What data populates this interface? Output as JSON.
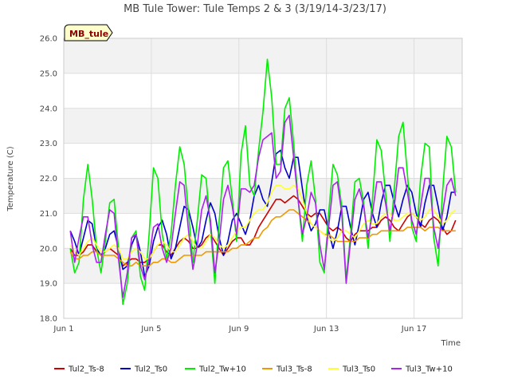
{
  "chart_data": {
    "type": "line",
    "title": "MB Tule Tower: Tule Temps 2 & 3 (3/19/14-3/23/17)",
    "site_tag": "MB_tule",
    "xlabel": "Time",
    "ylabel": "Temperature (C)",
    "xlim": [
      1,
      19.2
    ],
    "ylim": [
      18.0,
      26.0
    ],
    "x_ticks": [
      {
        "value": 1,
        "label": "Jun 1"
      },
      {
        "value": 5,
        "label": "Jun 5"
      },
      {
        "value": 9,
        "label": "Jun 9"
      },
      {
        "value": 13,
        "label": "Jun 13"
      },
      {
        "value": 17,
        "label": "Jun 17"
      }
    ],
    "y_ticks": [
      {
        "value": 18,
        "label": "18.0"
      },
      {
        "value": 19,
        "label": "19.0"
      },
      {
        "value": 20,
        "label": "20.0"
      },
      {
        "value": 21,
        "label": "21.0"
      },
      {
        "value": 22,
        "label": "22.0"
      },
      {
        "value": 23,
        "label": "23.0"
      },
      {
        "value": 24,
        "label": "24.0"
      },
      {
        "value": 25,
        "label": "25.0"
      },
      {
        "value": 26,
        "label": "26.0"
      }
    ],
    "grid": true,
    "legend_position": "bottom",
    "x": [
      1.3,
      1.5,
      1.7,
      1.9,
      2.1,
      2.3,
      2.5,
      2.7,
      2.9,
      3.1,
      3.3,
      3.5,
      3.7,
      3.9,
      4.1,
      4.3,
      4.5,
      4.7,
      4.9,
      5.1,
      5.3,
      5.5,
      5.7,
      5.9,
      6.1,
      6.3,
      6.5,
      6.7,
      6.9,
      7.1,
      7.3,
      7.5,
      7.7,
      7.9,
      8.1,
      8.3,
      8.5,
      8.7,
      8.9,
      9.1,
      9.3,
      9.5,
      9.7,
      9.9,
      10.1,
      10.3,
      10.5,
      10.7,
      10.9,
      11.1,
      11.3,
      11.5,
      11.7,
      11.9,
      12.1,
      12.3,
      12.5,
      12.7,
      12.9,
      13.1,
      13.3,
      13.5,
      13.7,
      13.9,
      14.1,
      14.3,
      14.5,
      14.7,
      14.9,
      15.1,
      15.3,
      15.5,
      15.7,
      15.9,
      16.1,
      16.3,
      16.5,
      16.7,
      16.9,
      17.1,
      17.3,
      17.5,
      17.7,
      17.9,
      18.1,
      18.3,
      18.5,
      18.7,
      18.9
    ],
    "series": [
      {
        "name": "Tul2_Ts-8",
        "color": "#cc0000",
        "values": [
          20.0,
          19.8,
          19.8,
          19.9,
          20.1,
          20.1,
          19.9,
          19.8,
          19.9,
          20.0,
          19.9,
          19.8,
          19.5,
          19.6,
          19.7,
          19.7,
          19.6,
          19.6,
          19.7,
          19.9,
          20.1,
          20.1,
          19.9,
          19.8,
          20.0,
          20.2,
          20.3,
          20.2,
          20.0,
          20.0,
          20.1,
          20.3,
          20.4,
          20.2,
          20.0,
          19.8,
          20.0,
          20.2,
          20.3,
          20.3,
          20.1,
          20.1,
          20.3,
          20.6,
          20.8,
          21.0,
          21.2,
          21.4,
          21.4,
          21.3,
          21.4,
          21.5,
          21.4,
          21.2,
          21.0,
          20.9,
          21.0,
          21.0,
          20.8,
          20.6,
          20.5,
          20.6,
          20.5,
          20.3,
          20.2,
          20.4,
          20.5,
          20.5,
          20.5,
          20.6,
          20.6,
          20.8,
          20.9,
          20.8,
          20.6,
          20.5,
          20.7,
          20.9,
          21.0,
          20.9,
          20.7,
          20.6,
          20.8,
          20.9,
          20.8,
          20.6,
          20.4,
          20.5,
          20.8
        ]
      },
      {
        "name": "Tul2_Ts0",
        "color": "#0000cc",
        "values": [
          20.5,
          20.2,
          19.8,
          20.3,
          20.8,
          20.7,
          20.0,
          19.8,
          20.0,
          20.4,
          20.5,
          20.0,
          19.4,
          19.5,
          20.1,
          20.4,
          19.9,
          19.2,
          19.5,
          20.2,
          20.6,
          20.8,
          20.4,
          19.7,
          20.0,
          20.6,
          21.2,
          21.1,
          20.6,
          20.0,
          20.2,
          20.8,
          21.3,
          21.0,
          20.3,
          19.8,
          20.2,
          20.8,
          21.0,
          20.7,
          20.4,
          20.8,
          21.5,
          21.8,
          21.4,
          21.2,
          21.9,
          22.7,
          22.8,
          22.3,
          22.0,
          22.6,
          22.6,
          21.7,
          20.9,
          20.5,
          20.7,
          21.1,
          21.1,
          20.5,
          20.0,
          20.5,
          21.2,
          21.2,
          20.6,
          20.1,
          20.7,
          21.4,
          21.6,
          21.0,
          20.6,
          21.3,
          21.8,
          21.8,
          21.3,
          20.9,
          21.4,
          21.8,
          21.6,
          21.0,
          20.6,
          21.3,
          21.8,
          21.8,
          21.2,
          20.5,
          20.9,
          21.6,
          21.6
        ]
      },
      {
        "name": "Tul2_Tw+10",
        "color": "#00ee00",
        "values": [
          20.0,
          19.3,
          19.6,
          21.4,
          22.4,
          21.4,
          20.0,
          19.3,
          20.2,
          21.3,
          21.4,
          20.0,
          18.4,
          19.0,
          20.3,
          20.5,
          19.2,
          18.8,
          20.4,
          22.3,
          22.0,
          20.4,
          19.7,
          20.4,
          21.8,
          22.9,
          22.4,
          21.0,
          19.6,
          20.8,
          22.1,
          22.0,
          20.6,
          19.0,
          20.8,
          22.3,
          22.5,
          21.4,
          20.2,
          22.7,
          23.5,
          21.8,
          21.5,
          22.8,
          23.9,
          25.4,
          24.3,
          22.4,
          22.4,
          24.0,
          24.3,
          23.0,
          21.4,
          20.2,
          21.8,
          22.5,
          21.4,
          19.6,
          19.3,
          21.0,
          22.4,
          22.1,
          21.2,
          19.1,
          20.4,
          21.9,
          22.0,
          21.3,
          20.0,
          21.4,
          23.1,
          22.8,
          21.6,
          20.2,
          21.7,
          23.2,
          23.6,
          22.1,
          20.6,
          20.2,
          22.0,
          23.0,
          22.9,
          20.3,
          19.5,
          21.6,
          23.2,
          22.9,
          21.6
        ]
      },
      {
        "name": "Tul3_Ts-8",
        "color": "#ee9900",
        "values": [
          19.9,
          19.7,
          19.7,
          19.8,
          19.8,
          19.9,
          19.9,
          19.8,
          19.8,
          19.8,
          19.8,
          19.7,
          19.6,
          19.5,
          19.5,
          19.6,
          19.5,
          19.5,
          19.5,
          19.6,
          19.6,
          19.7,
          19.7,
          19.6,
          19.6,
          19.7,
          19.8,
          19.8,
          19.8,
          19.8,
          19.8,
          19.9,
          19.9,
          19.9,
          19.9,
          19.9,
          19.9,
          20.0,
          20.0,
          20.1,
          20.1,
          20.2,
          20.3,
          20.3,
          20.5,
          20.6,
          20.8,
          20.9,
          20.9,
          21.0,
          21.1,
          21.1,
          21.0,
          20.9,
          20.8,
          20.7,
          20.6,
          20.5,
          20.4,
          20.4,
          20.3,
          20.2,
          20.2,
          20.2,
          20.2,
          20.2,
          20.3,
          20.3,
          20.3,
          20.4,
          20.4,
          20.5,
          20.5,
          20.5,
          20.5,
          20.5,
          20.5,
          20.6,
          20.6,
          20.6,
          20.6,
          20.5,
          20.6,
          20.6,
          20.6,
          20.5,
          20.5,
          20.5,
          20.5
        ]
      },
      {
        "name": "Tul3_Ts0",
        "color": "#ffff33",
        "values": [
          20.1,
          19.9,
          19.8,
          20.0,
          20.2,
          20.3,
          20.1,
          19.9,
          19.9,
          20.0,
          20.1,
          20.0,
          19.7,
          19.7,
          19.9,
          20.0,
          19.9,
          19.7,
          19.7,
          19.9,
          20.1,
          20.2,
          20.1,
          19.9,
          19.9,
          20.1,
          20.3,
          20.4,
          20.2,
          20.0,
          20.0,
          20.2,
          20.4,
          20.3,
          20.1,
          20.0,
          20.1,
          20.3,
          20.5,
          20.6,
          20.6,
          20.8,
          21.0,
          21.1,
          21.1,
          21.3,
          21.6,
          21.8,
          21.8,
          21.7,
          21.7,
          21.8,
          21.7,
          21.4,
          21.0,
          20.7,
          20.6,
          20.5,
          20.4,
          20.3,
          20.2,
          20.3,
          20.5,
          20.5,
          20.4,
          20.3,
          20.5,
          20.7,
          20.8,
          20.7,
          20.7,
          20.9,
          21.0,
          21.0,
          20.8,
          20.8,
          20.9,
          21.0,
          21.0,
          20.9,
          20.8,
          20.9,
          21.1,
          21.1,
          20.9,
          20.7,
          20.8,
          21.0,
          21.1
        ]
      },
      {
        "name": "Tul3_Tw+10",
        "color": "#aa22ee",
        "values": [
          20.5,
          19.6,
          20.3,
          20.9,
          20.9,
          20.1,
          19.6,
          19.6,
          20.4,
          21.1,
          21.0,
          19.7,
          18.6,
          19.3,
          20.3,
          20.4,
          19.5,
          19.1,
          19.7,
          20.6,
          20.7,
          20.0,
          19.6,
          20.0,
          21.0,
          21.9,
          21.8,
          20.5,
          19.4,
          20.1,
          21.1,
          21.5,
          20.8,
          19.3,
          20.2,
          21.4,
          21.8,
          21.2,
          20.4,
          21.7,
          21.7,
          21.6,
          21.8,
          22.6,
          23.1,
          23.2,
          23.3,
          22.0,
          22.2,
          23.6,
          23.8,
          22.6,
          21.4,
          20.4,
          20.9,
          21.6,
          21.3,
          20.1,
          19.4,
          20.6,
          21.8,
          21.9,
          21.0,
          19.0,
          20.2,
          21.4,
          21.7,
          21.2,
          20.3,
          21.0,
          21.9,
          21.9,
          21.3,
          20.5,
          21.2,
          22.3,
          22.3,
          21.6,
          20.8,
          20.4,
          21.2,
          22.0,
          22.0,
          20.6,
          20.0,
          21.0,
          21.8,
          22.0,
          21.5
        ]
      }
    ]
  }
}
